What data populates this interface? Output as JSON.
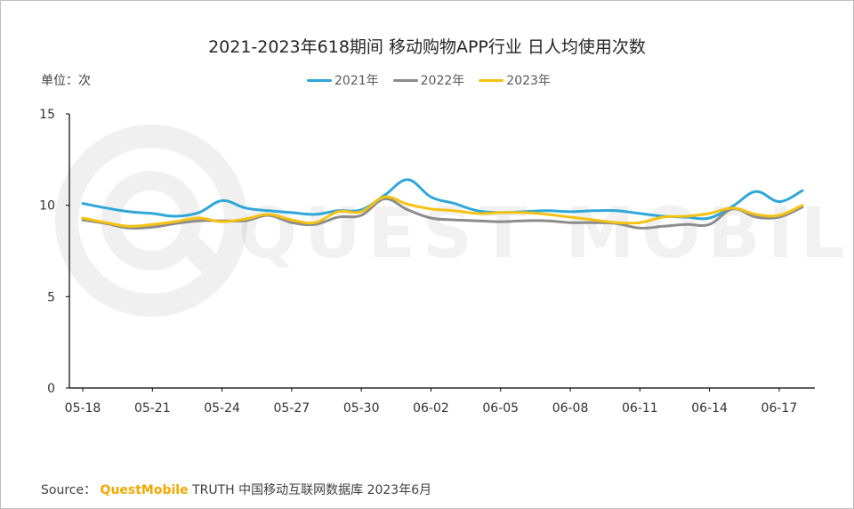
{
  "title": "2021-2023年618期间 移动购物APP行业 日人均使用次数",
  "unit_label": "单位：次",
  "source": {
    "prefix": "Source：",
    "brand": "QuestMobile",
    "suffix": "TRUTH 中国移动互联网数据库 2023年6月"
  },
  "watermark": "QUEST MOBILE",
  "chart_data": {
    "type": "line",
    "ylim": [
      0,
      15
    ],
    "yticks": [
      0,
      5,
      10,
      15
    ],
    "x": [
      "05-18",
      "05-19",
      "05-20",
      "05-21",
      "05-22",
      "05-23",
      "05-24",
      "05-25",
      "05-26",
      "05-27",
      "05-28",
      "05-29",
      "05-30",
      "05-31",
      "06-01",
      "06-02",
      "06-03",
      "06-04",
      "06-05",
      "06-06",
      "06-07",
      "06-08",
      "06-09",
      "06-10",
      "06-11",
      "06-12",
      "06-13",
      "06-14",
      "06-15",
      "06-16",
      "06-17",
      "06-18"
    ],
    "xtick_labels": [
      "05-18",
      "05-21",
      "05-24",
      "05-27",
      "05-30",
      "06-02",
      "06-05",
      "06-08",
      "06-11",
      "06-14",
      "06-17"
    ],
    "grid": false,
    "legend_position": "top-center",
    "series": [
      {
        "name": "2021年",
        "color": "#2ea7d8",
        "values": [
          10.1,
          9.85,
          9.65,
          9.55,
          9.4,
          9.6,
          10.25,
          9.85,
          9.7,
          9.6,
          9.5,
          9.7,
          9.75,
          10.55,
          11.4,
          10.45,
          10.1,
          9.7,
          9.6,
          9.65,
          9.7,
          9.65,
          9.7,
          9.7,
          9.55,
          9.4,
          9.35,
          9.3,
          9.95,
          10.75,
          10.2,
          10.8
        ]
      },
      {
        "name": "2022年",
        "color": "#8c8c8c",
        "values": [
          9.2,
          9.0,
          8.75,
          8.8,
          9.0,
          9.15,
          9.15,
          9.15,
          9.45,
          9.05,
          8.95,
          9.35,
          9.45,
          10.35,
          9.75,
          9.3,
          9.2,
          9.15,
          9.1,
          9.15,
          9.15,
          9.05,
          9.05,
          9.0,
          8.75,
          8.85,
          8.95,
          8.95,
          9.8,
          9.35,
          9.35,
          9.9
        ]
      },
      {
        "name": "2023年",
        "color": "#f5c211",
        "values": [
          9.3,
          9.05,
          8.85,
          8.95,
          9.1,
          9.3,
          9.1,
          9.25,
          9.5,
          9.2,
          9.05,
          9.65,
          9.65,
          10.45,
          10.05,
          9.8,
          9.7,
          9.55,
          9.6,
          9.6,
          9.5,
          9.35,
          9.2,
          9.05,
          9.05,
          9.35,
          9.4,
          9.55,
          9.85,
          9.5,
          9.45,
          10.0
        ]
      }
    ]
  }
}
